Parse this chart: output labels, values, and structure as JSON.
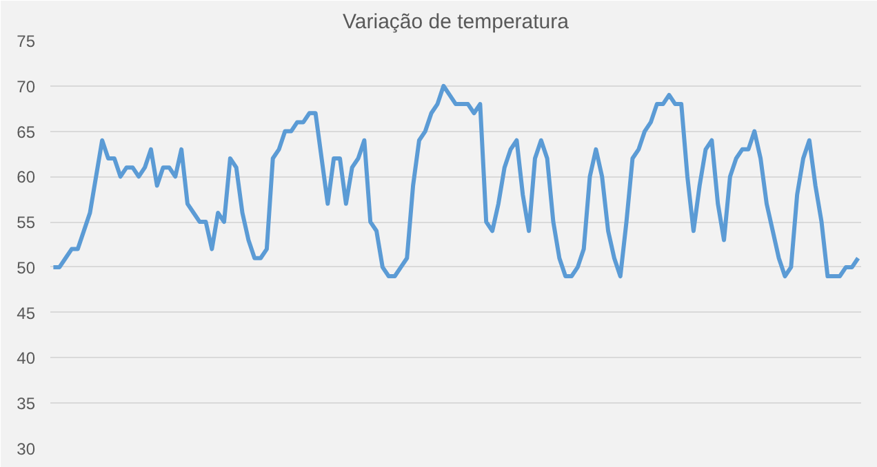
{
  "chart_data": {
    "type": "line",
    "title": "Variação de temperatura",
    "categories": [
      null,
      null,
      null,
      null,
      null,
      null,
      null,
      null,
      null,
      null,
      null,
      null,
      null,
      null,
      null,
      null,
      null,
      null,
      null,
      null,
      null,
      null,
      null,
      null,
      null,
      null,
      null,
      null,
      null,
      null,
      null,
      null,
      null,
      null,
      null,
      null,
      null,
      null,
      null,
      null,
      null,
      null,
      null,
      null,
      null,
      null,
      null,
      null,
      null,
      null,
      null,
      null,
      null,
      null,
      null,
      null,
      null,
      null,
      null,
      null,
      null,
      null,
      null,
      null,
      null,
      null,
      null,
      null,
      null,
      null,
      null,
      null,
      null,
      null,
      null,
      null,
      null,
      null,
      null,
      null,
      null,
      null,
      null,
      null,
      null,
      null,
      null,
      null,
      null,
      null,
      null,
      null,
      null,
      null,
      null,
      null,
      null,
      null,
      null,
      null,
      null,
      null,
      null,
      null,
      null,
      null,
      null,
      null,
      null,
      null,
      null,
      null,
      null,
      null,
      null,
      null,
      null,
      null,
      null,
      null,
      null,
      null,
      null,
      null,
      null,
      null,
      null,
      null,
      null,
      null,
      null,
      null,
      null
    ],
    "values": [
      50,
      50,
      51,
      52,
      52,
      54,
      56,
      60,
      64,
      62,
      62,
      60,
      61,
      61,
      60,
      61,
      63,
      59,
      61,
      61,
      60,
      63,
      57,
      56,
      55,
      55,
      52,
      56,
      55,
      62,
      61,
      56,
      53,
      51,
      51,
      52,
      62,
      63,
      65,
      65,
      66,
      66,
      67,
      67,
      62,
      57,
      62,
      62,
      57,
      61,
      62,
      64,
      55,
      54,
      50,
      49,
      49,
      50,
      51,
      59,
      64,
      65,
      67,
      68,
      70,
      69,
      68,
      68,
      68,
      67,
      68,
      55,
      54,
      57,
      61,
      63,
      64,
      58,
      54,
      62,
      64,
      62,
      55,
      51,
      49,
      49,
      50,
      52,
      60,
      63,
      60,
      54,
      51,
      49,
      55,
      62,
      63,
      65,
      66,
      68,
      68,
      69,
      68,
      68,
      60,
      54,
      59,
      63,
      64,
      57,
      53,
      60,
      62,
      63,
      63,
      65,
      62,
      57,
      54,
      51,
      49,
      50,
      58,
      62,
      64,
      59,
      55,
      49,
      49,
      49,
      50,
      50,
      51
    ],
    "color": "#5b9bd5",
    "ylim": [
      30,
      75
    ],
    "yticks": [
      30,
      35,
      40,
      45,
      50,
      55,
      60,
      65,
      70,
      75
    ],
    "grid": "y",
    "tick_labels": "y",
    "marker": "none",
    "line_style": "solid"
  }
}
